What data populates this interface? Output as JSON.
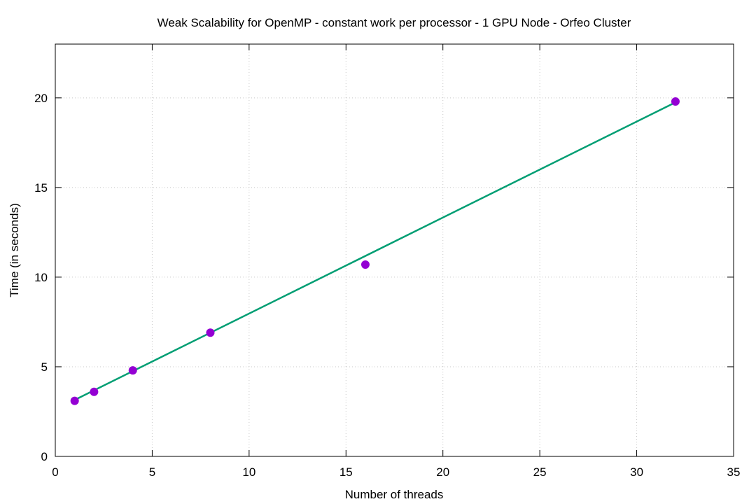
{
  "chart_data": {
    "type": "scatter",
    "title": "Weak Scalability for OpenMP - constant work per processor - 1 GPU Node - Orfeo Cluster",
    "xlabel": "Number of threads",
    "ylabel": "Time (in seconds)",
    "xlim": [
      0,
      35
    ],
    "ylim": [
      0,
      23
    ],
    "xticks": [
      0,
      5,
      10,
      15,
      20,
      25,
      30,
      35
    ],
    "yticks": [
      0,
      5,
      10,
      15,
      20
    ],
    "grid": true,
    "series": [
      {
        "type": "scatter",
        "color": "#9400d3",
        "x": [
          1,
          2,
          4,
          8,
          16,
          32
        ],
        "y": [
          3.1,
          3.6,
          4.8,
          6.9,
          10.7,
          19.8
        ]
      },
      {
        "type": "line",
        "color": "#009e73",
        "x": [
          1,
          32
        ],
        "y": [
          3.15,
          19.75
        ]
      }
    ]
  }
}
